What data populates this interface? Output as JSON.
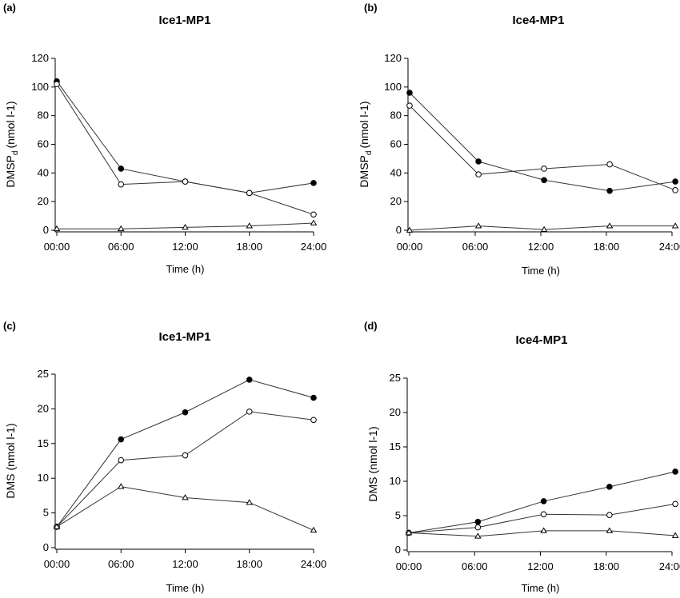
{
  "chart_data": [
    {
      "type": "line",
      "panel_label": "(a)",
      "title": "Ice1-MP1",
      "xlabel": "Time (h)",
      "ylabel_main": "DMSP",
      "ylabel_sub": "d",
      "ylabel_unit": "(nmol l-1)",
      "x_ticks": [
        "00:00",
        "06:00",
        "12:00",
        "18:00",
        "24:00"
      ],
      "x_hours": [
        0,
        6,
        12,
        18,
        24
      ],
      "ylim": [
        0,
        120
      ],
      "y_ticks": [
        0,
        20,
        40,
        60,
        80,
        100,
        120
      ],
      "series": [
        {
          "marker": "filled-circle",
          "x": [
            0,
            6,
            12,
            18,
            24
          ],
          "values": [
            104,
            43,
            34,
            26,
            33
          ]
        },
        {
          "marker": "open-circle",
          "x": [
            0,
            6,
            12,
            18,
            24
          ],
          "values": [
            102,
            32,
            34,
            26,
            11
          ]
        },
        {
          "marker": "open-triangle",
          "x": [
            0,
            6,
            12,
            18,
            24
          ],
          "values": [
            1,
            1,
            2,
            3,
            5
          ]
        }
      ]
    },
    {
      "type": "line",
      "panel_label": "(b)",
      "title": "Ice4-MP1",
      "xlabel": "Time (h)",
      "ylabel_main": "DMSP",
      "ylabel_sub": "d",
      "ylabel_unit": "(nmol l-1)",
      "x_ticks": [
        "00:00",
        "06:00",
        "12:00",
        "18:00",
        "24:00"
      ],
      "x_hours": [
        0,
        6,
        12,
        18,
        24
      ],
      "ylim": [
        0,
        120
      ],
      "y_ticks": [
        0,
        20,
        40,
        60,
        80,
        100,
        120
      ],
      "series": [
        {
          "marker": "filled-circle",
          "x": [
            0,
            6.3,
            12.3,
            18.3,
            24.3
          ],
          "values": [
            96,
            48,
            35,
            27.5,
            34
          ]
        },
        {
          "marker": "open-circle",
          "x": [
            0,
            6.3,
            12.3,
            18.3,
            24.3
          ],
          "values": [
            87,
            39,
            43,
            46,
            28
          ]
        },
        {
          "marker": "open-triangle",
          "x": [
            0,
            6.3,
            12.3,
            18.3,
            24.3
          ],
          "values": [
            0,
            3,
            0.5,
            3,
            3
          ]
        }
      ]
    },
    {
      "type": "line",
      "panel_label": "(c)",
      "title": "Ice1-MP1",
      "xlabel": "Time (h)",
      "ylabel_main": "DMS",
      "ylabel_sub": "",
      "ylabel_unit": "(nmol l-1)",
      "x_ticks": [
        "00:00",
        "06:00",
        "12:00",
        "18:00",
        "24:00"
      ],
      "x_hours": [
        0,
        6,
        12,
        18,
        24
      ],
      "ylim": [
        0,
        25
      ],
      "y_ticks": [
        0,
        5,
        10,
        15,
        20,
        25
      ],
      "series": [
        {
          "marker": "filled-circle",
          "x": [
            0,
            6,
            12,
            18,
            24
          ],
          "values": [
            3,
            15.6,
            19.5,
            24.2,
            21.6
          ]
        },
        {
          "marker": "open-circle",
          "x": [
            0,
            6,
            12,
            18,
            24
          ],
          "values": [
            3,
            12.6,
            13.3,
            19.6,
            18.4
          ]
        },
        {
          "marker": "open-triangle",
          "x": [
            0,
            6,
            12,
            18,
            24
          ],
          "values": [
            3,
            8.8,
            7.2,
            6.5,
            2.5
          ]
        }
      ]
    },
    {
      "type": "line",
      "panel_label": "(d)",
      "title": "Ice4-MP1",
      "xlabel": "Time (h)",
      "ylabel_main": "DMS",
      "ylabel_sub": "",
      "ylabel_unit": "(nmol l-1)",
      "x_ticks": [
        "00:00",
        "06:00",
        "12:00",
        "18:00",
        "24:00"
      ],
      "x_hours": [
        0,
        6,
        12,
        18,
        24
      ],
      "ylim": [
        0,
        25
      ],
      "y_ticks": [
        0,
        5,
        10,
        15,
        20,
        25
      ],
      "series": [
        {
          "marker": "filled-circle",
          "x": [
            0,
            6.3,
            12.3,
            18.3,
            24.3
          ],
          "values": [
            2.5,
            4.1,
            7.1,
            9.2,
            11.4
          ]
        },
        {
          "marker": "open-circle",
          "x": [
            0,
            6.3,
            12.3,
            18.3,
            24.3
          ],
          "values": [
            2.5,
            3.3,
            5.2,
            5.1,
            6.7
          ]
        },
        {
          "marker": "open-triangle",
          "x": [
            0,
            6.3,
            12.3,
            18.3,
            24.3
          ],
          "values": [
            2.5,
            2.0,
            2.8,
            2.8,
            2.1
          ]
        }
      ]
    }
  ]
}
